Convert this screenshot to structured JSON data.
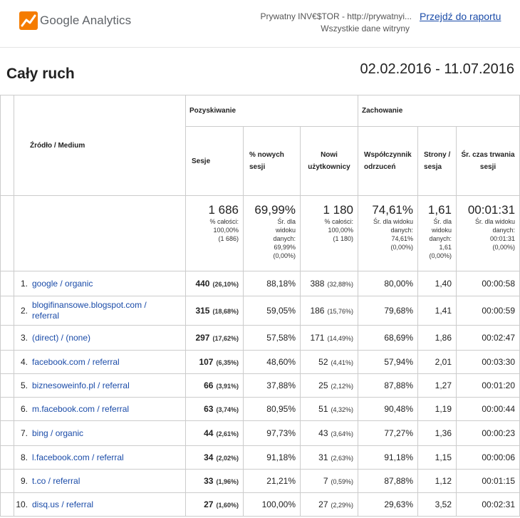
{
  "header": {
    "logo_text": "Google Analytics",
    "property_name": "Prywatny INV€$TOR - http://prywatnyi...",
    "view_name": "Wszystkie dane witryny",
    "report_link": "Przejdź do raportu"
  },
  "report": {
    "title": "Cały ruch",
    "date_range": "02.02.2016 - 11.07.2016"
  },
  "table": {
    "dimension_header": "Źródło / Medium",
    "group_acquisition": "Pozyskiwanie",
    "group_behavior": "Zachowanie",
    "col_sessions": "Sesje",
    "col_new_sessions": "% nowych sesji",
    "col_new_users": "Nowi użytkownicy",
    "col_bounce": "Współczynnik odrzuceń",
    "col_pages": "Strony / sesja",
    "col_duration": "Śr. czas trwania sesji",
    "totals": {
      "sessions": "1 686",
      "sessions_note": [
        "% całości:",
        "100,00%",
        "(1 686)"
      ],
      "new_sessions": "69,99%",
      "new_sessions_note": [
        "Śr. dla",
        "widoku",
        "danych:",
        "69,99%",
        "(0,00%)"
      ],
      "new_users": "1 180",
      "new_users_note": [
        "% całości:",
        "100,00%",
        "(1 180)"
      ],
      "bounce": "74,61%",
      "bounce_note": [
        "Śr. dla widoku",
        "danych:",
        "74,61%",
        "(0,00%)"
      ],
      "pages": "1,61",
      "pages_note": [
        "Śr. dla",
        "widoku",
        "danych:",
        "1,61",
        "(0,00%)"
      ],
      "duration": "00:01:31",
      "duration_note": [
        "Śr. dla widoku",
        "danych:",
        "00:01:31",
        "(0,00%)"
      ]
    },
    "rows": [
      {
        "idx": "1.",
        "source": "google / organic",
        "sessions": "440",
        "sessions_pct": "(26,10%)",
        "new_sessions": "88,18%",
        "new_users": "388",
        "new_users_pct": "(32,88%)",
        "bounce": "80,00%",
        "pages": "1,40",
        "duration": "00:00:58"
      },
      {
        "idx": "2.",
        "source": "blogifinansowe.blogspot.com / referral",
        "sessions": "315",
        "sessions_pct": "(18,68%)",
        "new_sessions": "59,05%",
        "new_users": "186",
        "new_users_pct": "(15,76%)",
        "bounce": "79,68%",
        "pages": "1,41",
        "duration": "00:00:59"
      },
      {
        "idx": "3.",
        "source": "(direct) / (none)",
        "sessions": "297",
        "sessions_pct": "(17,62%)",
        "new_sessions": "57,58%",
        "new_users": "171",
        "new_users_pct": "(14,49%)",
        "bounce": "68,69%",
        "pages": "1,86",
        "duration": "00:02:47"
      },
      {
        "idx": "4.",
        "source": "facebook.com / referral",
        "sessions": "107",
        "sessions_pct": "(6,35%)",
        "new_sessions": "48,60%",
        "new_users": "52",
        "new_users_pct": "(4,41%)",
        "bounce": "57,94%",
        "pages": "2,01",
        "duration": "00:03:30"
      },
      {
        "idx": "5.",
        "source": "biznesoweinfo.pl / referral",
        "sessions": "66",
        "sessions_pct": "(3,91%)",
        "new_sessions": "37,88%",
        "new_users": "25",
        "new_users_pct": "(2,12%)",
        "bounce": "87,88%",
        "pages": "1,27",
        "duration": "00:01:20"
      },
      {
        "idx": "6.",
        "source": "m.facebook.com / referral",
        "sessions": "63",
        "sessions_pct": "(3,74%)",
        "new_sessions": "80,95%",
        "new_users": "51",
        "new_users_pct": "(4,32%)",
        "bounce": "90,48%",
        "pages": "1,19",
        "duration": "00:00:44"
      },
      {
        "idx": "7.",
        "source": "bing / organic",
        "sessions": "44",
        "sessions_pct": "(2,61%)",
        "new_sessions": "97,73%",
        "new_users": "43",
        "new_users_pct": "(3,64%)",
        "bounce": "77,27%",
        "pages": "1,36",
        "duration": "00:00:23"
      },
      {
        "idx": "8.",
        "source": "l.facebook.com / referral",
        "sessions": "34",
        "sessions_pct": "(2,02%)",
        "new_sessions": "91,18%",
        "new_users": "31",
        "new_users_pct": "(2,63%)",
        "bounce": "91,18%",
        "pages": "1,15",
        "duration": "00:00:06"
      },
      {
        "idx": "9.",
        "source": "t.co / referral",
        "sessions": "33",
        "sessions_pct": "(1,96%)",
        "new_sessions": "21,21%",
        "new_users": "7",
        "new_users_pct": "(0,59%)",
        "bounce": "87,88%",
        "pages": "1,12",
        "duration": "00:01:15"
      },
      {
        "idx": "10.",
        "source": "disq.us / referral",
        "sessions": "27",
        "sessions_pct": "(1,60%)",
        "new_sessions": "100,00%",
        "new_users": "27",
        "new_users_pct": "(2,29%)",
        "bounce": "29,63%",
        "pages": "3,52",
        "duration": "00:02:31"
      }
    ]
  }
}
